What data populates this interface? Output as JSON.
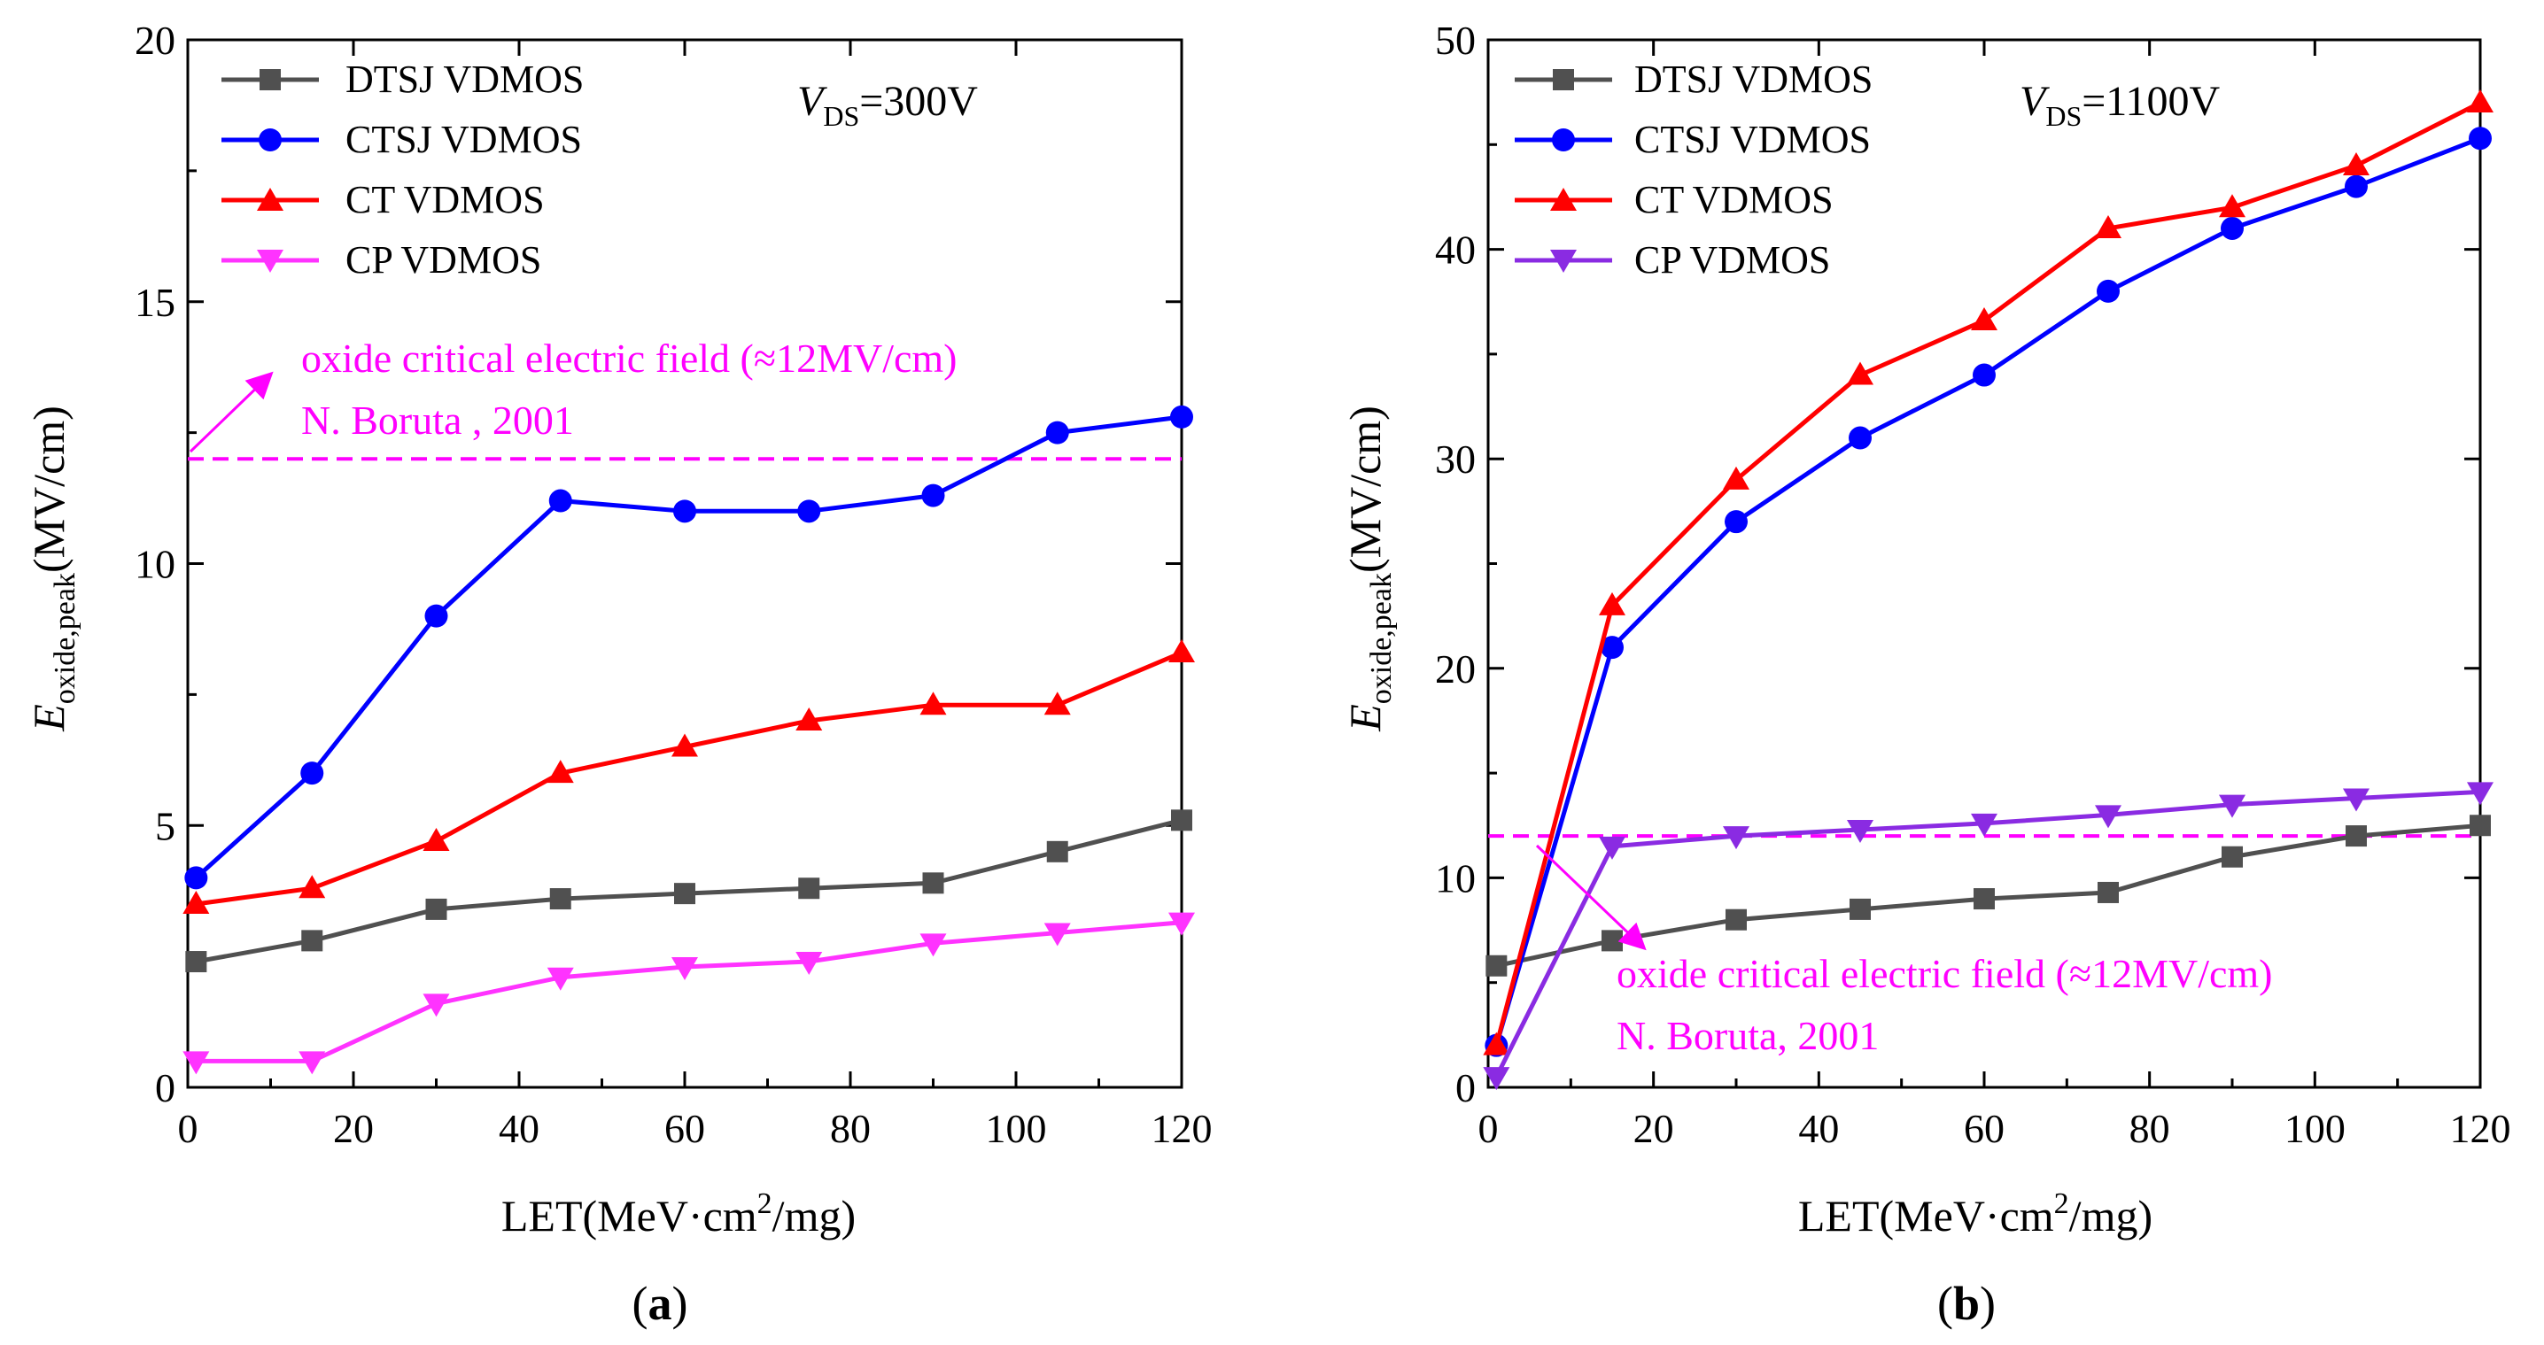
{
  "chart_data": [
    {
      "type": "line",
      "panel_label": "a",
      "xlabel_main": "LET(MeV·cm",
      "xlabel_sup": "2",
      "xlabel_tail": "/mg)",
      "ylabel_E": "E",
      "ylabel_sub": "oxide,peak",
      "ylabel_tail": "(MV/cm)",
      "xlim": [
        0,
        120
      ],
      "ylim": [
        0,
        20
      ],
      "xticks": [
        "0",
        "20",
        "40",
        "60",
        "80",
        "100",
        "120"
      ],
      "yticks": [
        "0",
        "5",
        "10",
        "15",
        "20"
      ],
      "condition": {
        "v": "V",
        "sub": "DS",
        "value": "=300V"
      },
      "annotation": {
        "line1": "oxide critical electric field (≈12MV/cm)",
        "line2": "N. Boruta , 2001",
        "color": "#ff00ff"
      },
      "reference_line": {
        "y": 12,
        "color": "#ff00ff"
      },
      "x": [
        1,
        15,
        30,
        45,
        60,
        75,
        90,
        105,
        120
      ],
      "series": [
        {
          "name": "DTSJ  VDMOS",
          "color": "#505050",
          "marker": "square",
          "values": [
            2.4,
            2.8,
            3.4,
            3.6,
            3.7,
            3.8,
            3.9,
            4.5,
            5.1
          ]
        },
        {
          "name": "CTSJ VDMOS",
          "color": "#0000ff",
          "marker": "circle",
          "values": [
            4.0,
            6.0,
            9.0,
            11.2,
            11.0,
            11.0,
            11.3,
            12.5,
            12.8
          ]
        },
        {
          "name": "CT VDMOS",
          "color": "#ff0000",
          "marker": "triangle-up",
          "values": [
            3.5,
            3.8,
            4.7,
            6.0,
            6.5,
            7.0,
            7.3,
            7.3,
            8.3
          ]
        },
        {
          "name": "CP VDMOS",
          "color": "#ff33ff",
          "marker": "triangle-down",
          "values": [
            0.5,
            0.5,
            1.6,
            2.1,
            2.3,
            2.4,
            2.75,
            2.95,
            3.15
          ]
        }
      ]
    },
    {
      "type": "line",
      "panel_label": "b",
      "xlabel_main": "LET(MeV·cm",
      "xlabel_sup": "2",
      "xlabel_tail": "/mg)",
      "ylabel_E": "E",
      "ylabel_sub": "oxide,peak",
      "ylabel_tail": "(MV/cm)",
      "xlim": [
        0,
        120
      ],
      "ylim": [
        0,
        50
      ],
      "xticks": [
        "0",
        "20",
        "40",
        "60",
        "80",
        "100",
        "120"
      ],
      "yticks": [
        "0",
        "10",
        "20",
        "30",
        "40",
        "50"
      ],
      "condition": {
        "v": "V",
        "sub": "DS",
        "value": "=1100V"
      },
      "annotation": {
        "line1": "oxide critical electric field (≈12MV/cm)",
        "line2": "N. Boruta, 2001",
        "color": "#ff00ff"
      },
      "reference_line": {
        "y": 12,
        "color": "#ff00ff"
      },
      "x": [
        1,
        15,
        30,
        45,
        60,
        75,
        90,
        105,
        120
      ],
      "series": [
        {
          "name": "DTSJ  VDMOS",
          "color": "#505050",
          "marker": "square",
          "values": [
            5.8,
            7.0,
            8.0,
            8.5,
            9.0,
            9.3,
            11.0,
            12.0,
            12.5
          ]
        },
        {
          "name": "CTSJ VDMOS",
          "color": "#0000ff",
          "marker": "circle",
          "values": [
            2.0,
            21.0,
            27.0,
            31.0,
            34.0,
            38.0,
            41.0,
            43.0,
            45.3
          ]
        },
        {
          "name": "CT VDMOS",
          "color": "#ff0000",
          "marker": "triangle-up",
          "values": [
            2.0,
            23.0,
            29.0,
            34.0,
            36.6,
            41.0,
            42.0,
            44.0,
            47.0
          ]
        },
        {
          "name": "CP VDMOS",
          "color": "#8a2be2",
          "marker": "triangle-down",
          "values": [
            0.5,
            11.5,
            12.0,
            12.3,
            12.6,
            13.0,
            13.5,
            13.8,
            14.1
          ]
        }
      ]
    }
  ]
}
